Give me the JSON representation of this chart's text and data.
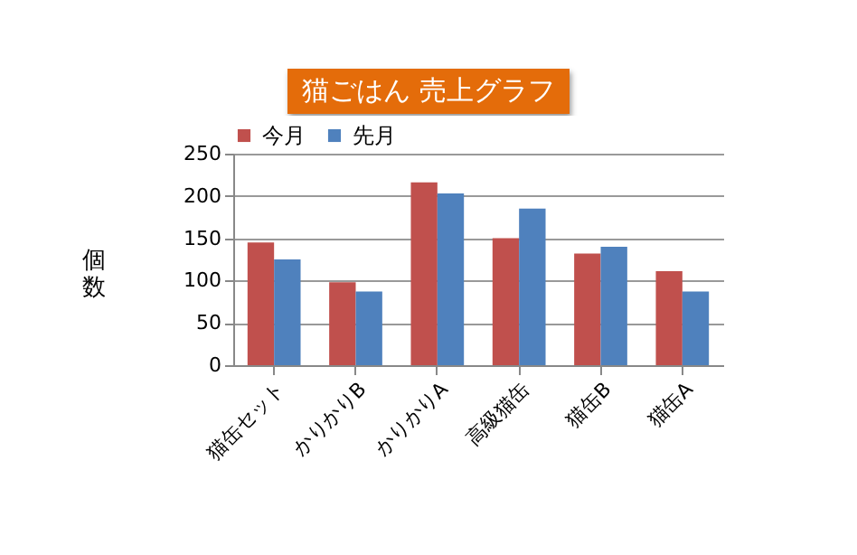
{
  "chart_data": {
    "type": "bar",
    "title": "猫ごはん 売上グラフ",
    "ylabel": "個数",
    "categories": [
      "猫缶セット",
      "かりかりB",
      "かりかりA",
      "高級猫缶",
      "猫缶B",
      "猫缶A"
    ],
    "series": [
      {
        "name": "今月",
        "color": "#c0504d",
        "values": [
          145,
          98,
          216,
          150,
          132,
          111
        ]
      },
      {
        "name": "先月",
        "color": "#4f81bd",
        "values": [
          125,
          87,
          203,
          185,
          140,
          87
        ]
      }
    ],
    "ylim": [
      0,
      250
    ],
    "yticks": [
      0,
      50,
      100,
      150,
      200,
      250
    ],
    "grid": "y",
    "legend": "top"
  }
}
